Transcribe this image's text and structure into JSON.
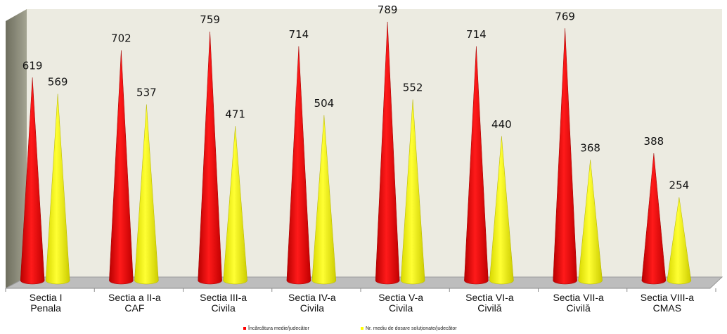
{
  "chart_data": {
    "type": "bar",
    "title": "",
    "xlabel": "",
    "ylabel": "",
    "ylim": [
      0,
      800
    ],
    "grid": false,
    "legend_position": "bottom",
    "categories": [
      [
        "Sectia I",
        "Penala"
      ],
      [
        "Sectia a II-a",
        "CAF"
      ],
      [
        "Sectia III-a",
        "Civila"
      ],
      [
        "Sectia IV-a",
        "Civila"
      ],
      [
        "Sectia V-a",
        "Civila"
      ],
      [
        "Sectia VI-a",
        "Civilă"
      ],
      [
        "Sectia VII-a",
        "Civilă"
      ],
      [
        "Sectia VIII-a",
        "CMAS"
      ]
    ],
    "series": [
      {
        "name": "Încărcătura medie/judecător",
        "color": "#ff0000",
        "values": [
          619,
          702,
          759,
          714,
          789,
          714,
          769,
          388
        ]
      },
      {
        "name": "Nr. mediu de dosare soluționate/judecător",
        "color": "#ffff00",
        "values": [
          569,
          537,
          471,
          504,
          552,
          440,
          368,
          254
        ]
      }
    ]
  }
}
